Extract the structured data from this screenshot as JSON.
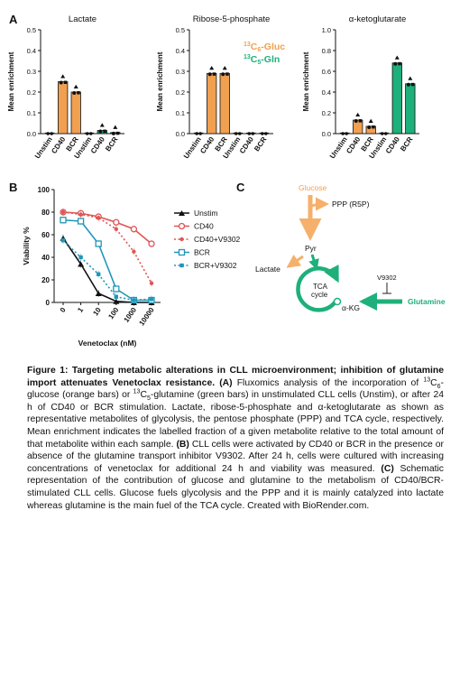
{
  "figure": {
    "panel_a": {
      "label": "A",
      "ylabel": "Mean enrichment",
      "legend": [
        {
          "text": "13C6-Gluc",
          "color": "#f0a050"
        },
        {
          "text": "13C5-Gln",
          "color": "#1db07a"
        }
      ]
    },
    "panel_b": {
      "label": "B"
    },
    "panel_c": {
      "label": "C",
      "nodes": {
        "glucose": "Glucose",
        "ppp": "PPP (R5P)",
        "pyr": "Pyr",
        "lactate": "Lactate",
        "tca_line1": "TCA",
        "tca_line2": "cycle",
        "akg": "α-KG",
        "v9302": "V9302",
        "glutamine": "Glutamine"
      }
    }
  },
  "chart_data": [
    {
      "type": "bar",
      "title": "Lactate",
      "ylabel": "Mean enrichment",
      "ylim": [
        0,
        0.5
      ],
      "yticks": [
        "0.0",
        "0.1",
        "0.2",
        "0.3",
        "0.4",
        "0.5"
      ],
      "categories": [
        "Unstim",
        "CD40",
        "BCR",
        "Unstim",
        "CD40",
        "BCR"
      ],
      "series": [
        {
          "name": "13C6-Gluc",
          "color": "#f0a050",
          "values": [
            0.0,
            0.25,
            0.2,
            null,
            null,
            null
          ]
        },
        {
          "name": "13C5-Gln",
          "color": "#1db07a",
          "values": [
            null,
            null,
            null,
            0.0,
            0.015,
            0.005
          ]
        }
      ]
    },
    {
      "type": "bar",
      "title": "Ribose-5-phosphate",
      "ylabel": "Mean enrichment",
      "ylim": [
        0,
        0.5
      ],
      "yticks": [
        "0.0",
        "0.1",
        "0.2",
        "0.3",
        "0.4",
        "0.5"
      ],
      "categories": [
        "Unstim",
        "CD40",
        "BCR",
        "Unstim",
        "CD40",
        "BCR"
      ],
      "series": [
        {
          "name": "13C6-Gluc",
          "color": "#f0a050",
          "values": [
            0.0,
            0.29,
            0.29,
            null,
            null,
            null
          ]
        },
        {
          "name": "13C5-Gln",
          "color": "#1db07a",
          "values": [
            null,
            null,
            null,
            0.0,
            0.0,
            0.0
          ]
        }
      ]
    },
    {
      "type": "bar",
      "title": "α-ketoglutarate",
      "ylabel": "Mean enrichment",
      "ylim": [
        0,
        1.0
      ],
      "yticks": [
        "0.0",
        "0.2",
        "0.4",
        "0.6",
        "0.8",
        "1.0"
      ],
      "categories": [
        "Unstim",
        "CD40",
        "BCR",
        "Unstim",
        "CD40",
        "BCR"
      ],
      "series": [
        {
          "name": "13C6-Gluc",
          "color": "#f0a050",
          "values": [
            0.0,
            0.13,
            0.07,
            null,
            null,
            null
          ]
        },
        {
          "name": "13C5-Gln",
          "color": "#1db07a",
          "values": [
            null,
            null,
            null,
            0.0,
            0.68,
            0.48
          ]
        }
      ]
    },
    {
      "type": "line",
      "title": "",
      "xlabel": "Venetoclax (nM)",
      "ylabel": "Viability %",
      "ylim": [
        0,
        100
      ],
      "yticks": [
        "0",
        "20",
        "40",
        "60",
        "80",
        "100"
      ],
      "categories": [
        "0",
        "1",
        "10",
        "100",
        "1000",
        "10000"
      ],
      "legend_position": "right",
      "series": [
        {
          "name": "Unstim",
          "color": "#111111",
          "marker": "triangle",
          "dashed": false,
          "values": [
            57,
            34,
            8,
            1,
            0,
            0
          ]
        },
        {
          "name": "CD40",
          "color": "#e05555",
          "marker": "circle",
          "dashed": false,
          "values": [
            80,
            79,
            76,
            71,
            65,
            52
          ]
        },
        {
          "name": "CD40+V9302",
          "color": "#e05555",
          "marker": "dot",
          "dashed": true,
          "values": [
            80,
            78,
            75,
            65,
            45,
            17
          ]
        },
        {
          "name": "BCR",
          "color": "#2196b8",
          "marker": "square",
          "dashed": false,
          "values": [
            73,
            72,
            52,
            12,
            2,
            2
          ]
        },
        {
          "name": "BCR+V9302",
          "color": "#2196b8",
          "marker": "smallsquare",
          "dashed": true,
          "values": [
            55,
            40,
            25,
            5,
            2,
            3
          ]
        }
      ]
    }
  ],
  "caption": {
    "title": "Figure 1: Targeting metabolic alterations in CLL microenvironment; inhibition of glutamine import attenuates Venetoclax resistance.",
    "a_label": "(A)",
    "a_text_1": "Fluxomics analysis of the incorporation of ",
    "iso1_sup": "13",
    "iso1_mid": "C",
    "iso1_sub": "6",
    "a_text_2": "-glucose (orange bars) or ",
    "iso2_sup": "13",
    "iso2_mid": "C",
    "iso2_sub": "5",
    "a_text_3": "-glutamine (green bars) in unstimulated CLL cells (Unstim), or after 24 h of CD40 or BCR stimulation. Lactate, ribose-5-phosphate and α-ketoglutarate as shown as representative metabolites of glycolysis, the pentose phosphate (PPP) and TCA cycle, respectively. Mean enrichment indicates the labelled fraction of a given metabolite relative to the total amount of that metabolite within each sample.",
    "b_label": "(B)",
    "b_text": "CLL cells were activated by CD40 or BCR in the presence or absence of the glutamine transport inhibitor V9302. After 24 h, cells were cultured with increasing concentrations of venetoclax for additional 24 h and viability was measured.",
    "c_label": "(C)",
    "c_text": "Schematic representation of the contribution of glucose and glutamine to the metabolism of CD40/BCR-stimulated CLL cells. Glucose fuels glycolysis and the PPP and it is mainly catalyzed into lactate whereas glutamine is the main fuel of the TCA cycle. Created with BioRender.com."
  }
}
